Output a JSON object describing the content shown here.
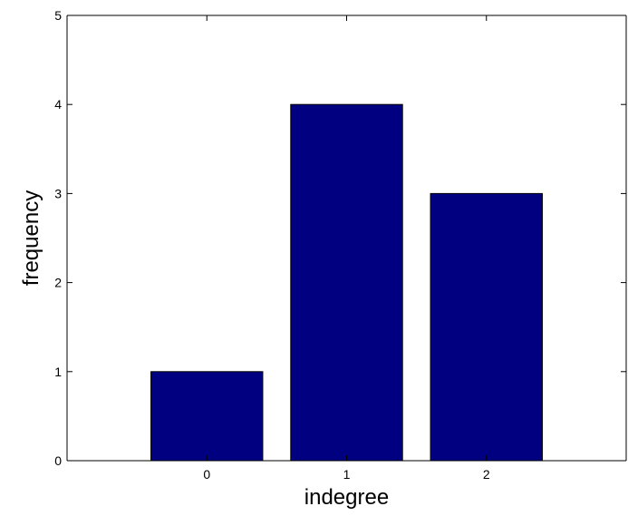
{
  "chart_data": {
    "type": "bar",
    "categories": [
      "0",
      "1",
      "2"
    ],
    "values": [
      1,
      4,
      3
    ],
    "title": "",
    "xlabel": "indegree",
    "ylabel": "frequency",
    "xlim": [
      -1,
      3
    ],
    "ylim": [
      0,
      5
    ],
    "yticks": [
      "0",
      "1",
      "2",
      "3",
      "4",
      "5"
    ],
    "grid": false,
    "legend": "none",
    "bar_color": "#000080",
    "bar_edge_color": "#000000"
  }
}
